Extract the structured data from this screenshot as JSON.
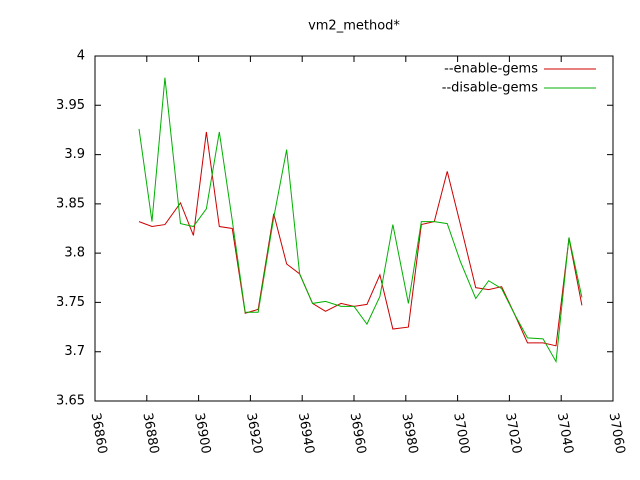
{
  "chart_data": {
    "type": "line",
    "title": "vm2_method*",
    "x": [
      36877,
      36882,
      36887,
      36893,
      36898,
      36903,
      36908,
      36913,
      36918,
      36923,
      36929,
      36934,
      36939,
      36944,
      36949,
      36955,
      36960,
      36965,
      36970,
      36975,
      36981,
      36986,
      36991,
      36996,
      37001,
      37007,
      37012,
      37017,
      37022,
      37027,
      37033,
      37038,
      37043,
      37048
    ],
    "series": [
      {
        "name": "--enable-gems",
        "color": "#cc0000",
        "values": [
          3.832,
          3.827,
          3.829,
          3.851,
          3.818,
          3.923,
          3.827,
          3.825,
          3.739,
          3.743,
          3.84,
          3.789,
          3.779,
          3.749,
          3.741,
          3.749,
          3.746,
          3.748,
          3.778,
          3.723,
          3.725,
          3.829,
          3.832,
          3.883,
          3.83,
          3.765,
          3.763,
          3.766,
          3.738,
          3.709,
          3.709,
          3.706,
          3.815,
          3.747
        ]
      },
      {
        "name": "--disable-gems",
        "color": "#00b000",
        "values": [
          3.926,
          3.832,
          3.978,
          3.83,
          3.827,
          3.845,
          3.923,
          3.833,
          3.74,
          3.74,
          3.836,
          3.905,
          3.779,
          3.749,
          3.751,
          3.746,
          3.746,
          3.728,
          3.756,
          3.829,
          3.749,
          3.832,
          3.832,
          3.83,
          3.792,
          3.754,
          3.772,
          3.764,
          3.738,
          3.714,
          3.713,
          3.69,
          3.816,
          3.755
        ]
      }
    ],
    "xlim": [
      36860,
      37060
    ],
    "xticks": [
      36860,
      36880,
      36900,
      36920,
      36940,
      36960,
      36980,
      37000,
      37020,
      37040,
      37060
    ],
    "ylim": [
      3.65,
      4
    ],
    "yticks": [
      3.65,
      3.7,
      3.75,
      3.8,
      3.85,
      3.9,
      3.95,
      4
    ],
    "legend": "top-right"
  }
}
